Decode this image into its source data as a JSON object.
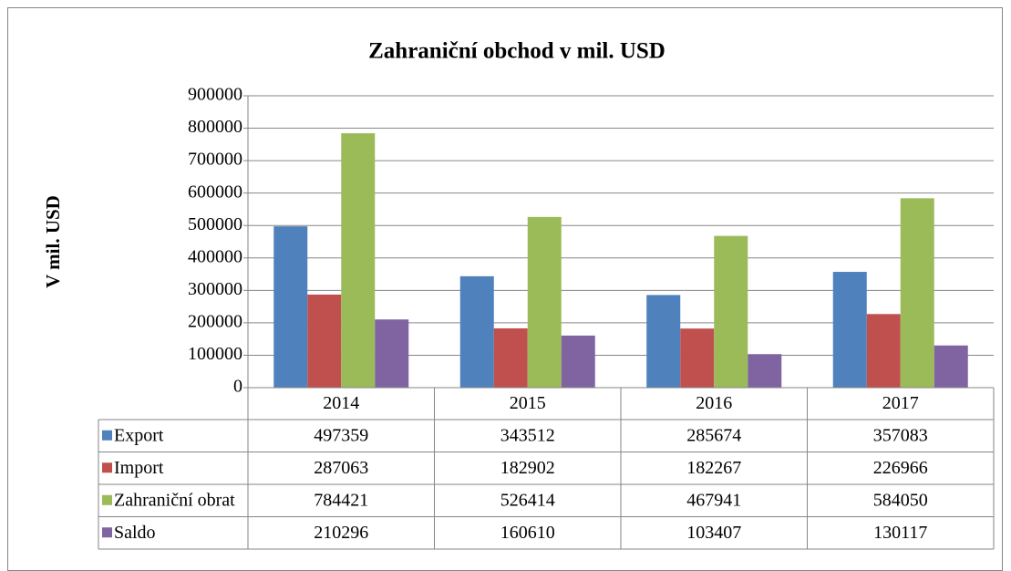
{
  "chart_data": {
    "type": "bar",
    "title": "Zahraniční obchod v mil. USD",
    "y_label": "V mil. USD",
    "categories": [
      "2014",
      "2015",
      "2016",
      "2017"
    ],
    "series": [
      {
        "name": "Export",
        "color": "#4f81bd",
        "values": [
          497359,
          343512,
          285674,
          357083
        ]
      },
      {
        "name": "Import",
        "color": "#c0504d",
        "values": [
          287063,
          182902,
          182267,
          226966
        ]
      },
      {
        "name": "Zahraniční obrat",
        "color": "#9bbb59",
        "values": [
          784421,
          526414,
          467941,
          584050
        ]
      },
      {
        "name": "Saldo",
        "color": "#8064a2",
        "values": [
          210296,
          160610,
          103407,
          130117
        ]
      }
    ],
    "ylim": [
      0,
      900000
    ],
    "yticks": [
      0,
      100000,
      200000,
      300000,
      400000,
      500000,
      600000,
      700000,
      800000,
      900000
    ],
    "grid": true,
    "data_table": true
  }
}
